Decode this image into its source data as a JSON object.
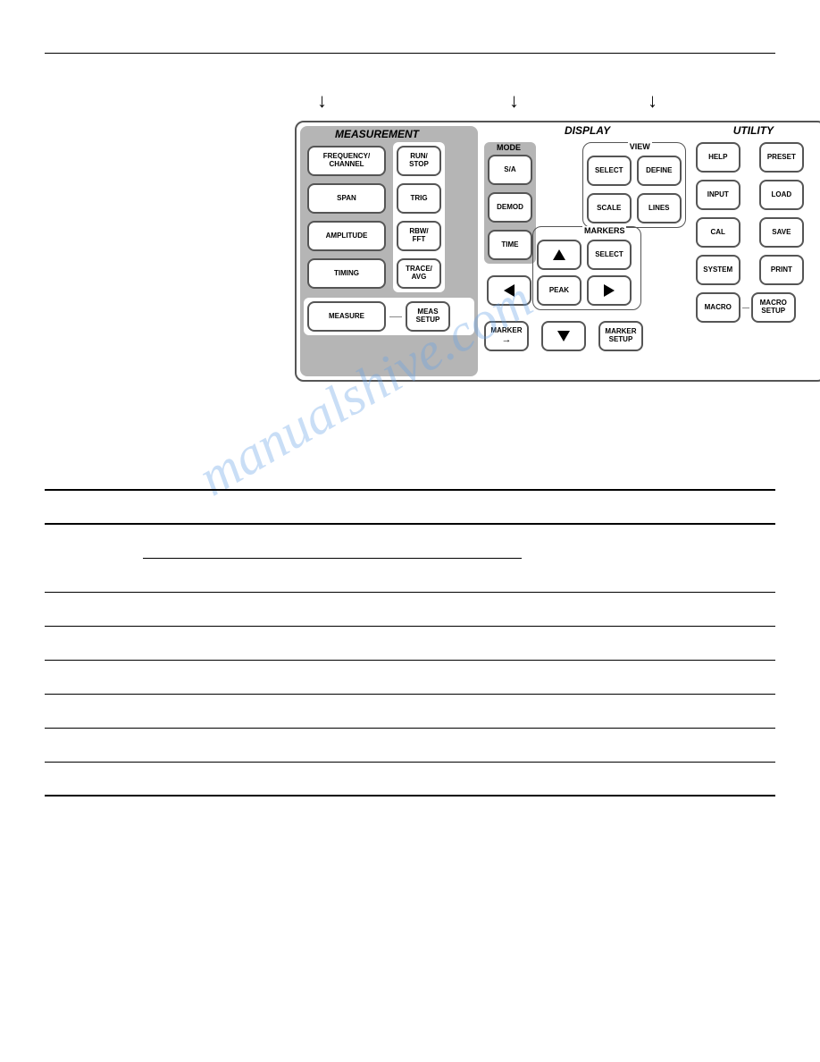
{
  "topArrows": [
    "↓",
    "↓",
    "↓"
  ],
  "sections": {
    "measurement": {
      "label": "MEASUREMENT",
      "leftCol": [
        "FREQUENCY/\nCHANNEL",
        "SPAN",
        "AMPLITUDE",
        "TIMING"
      ],
      "rightCol": [
        "RUN/\nSTOP",
        "TRIG",
        "RBW/\nFFT",
        "TRACE/\nAVG"
      ],
      "bottom": [
        "MEASURE",
        "MEAS\nSETUP"
      ]
    },
    "display": {
      "label": "DISPLAY",
      "mode": {
        "label": "MODE",
        "buttons": [
          "S/A",
          "DEMOD",
          "TIME"
        ]
      },
      "view": {
        "label": "VIEW",
        "row1": [
          "SELECT",
          "DEFINE"
        ],
        "row2": [
          "SCALE",
          "LINES"
        ]
      },
      "markers": {
        "label": "MARKERS",
        "grid": [
          {
            "type": "up"
          },
          {
            "text": "SELECT"
          },
          null,
          {
            "type": "left"
          },
          {
            "text": "PEAK"
          },
          {
            "type": "right"
          }
        ],
        "leftOuter": {
          "type": "left"
        }
      },
      "bottom": {
        "marker": "MARKER",
        "down": true,
        "setup": "MARKER\nSETUP"
      }
    },
    "utility": {
      "label": "UTILITY",
      "grid": [
        "HELP",
        "PRESET",
        "INPUT",
        "LOAD",
        "CAL",
        "SAVE",
        "SYSTEM",
        "PRINT"
      ],
      "bottom": [
        "MACRO",
        "MACRO\nSETUP"
      ]
    }
  },
  "table": {
    "headers": [
      "",
      "",
      "",
      ""
    ],
    "rows": [
      [
        "",
        "",
        "",
        ""
      ],
      [
        "",
        "",
        "",
        ""
      ],
      [
        "",
        "",
        "",
        ""
      ],
      [
        "",
        "",
        "",
        ""
      ],
      [
        "",
        "",
        "",
        ""
      ],
      [
        "",
        "",
        "",
        ""
      ],
      [
        "",
        "",
        "",
        ""
      ],
      [
        "",
        "",
        "",
        ""
      ]
    ]
  },
  "watermark": "manualshive.com"
}
